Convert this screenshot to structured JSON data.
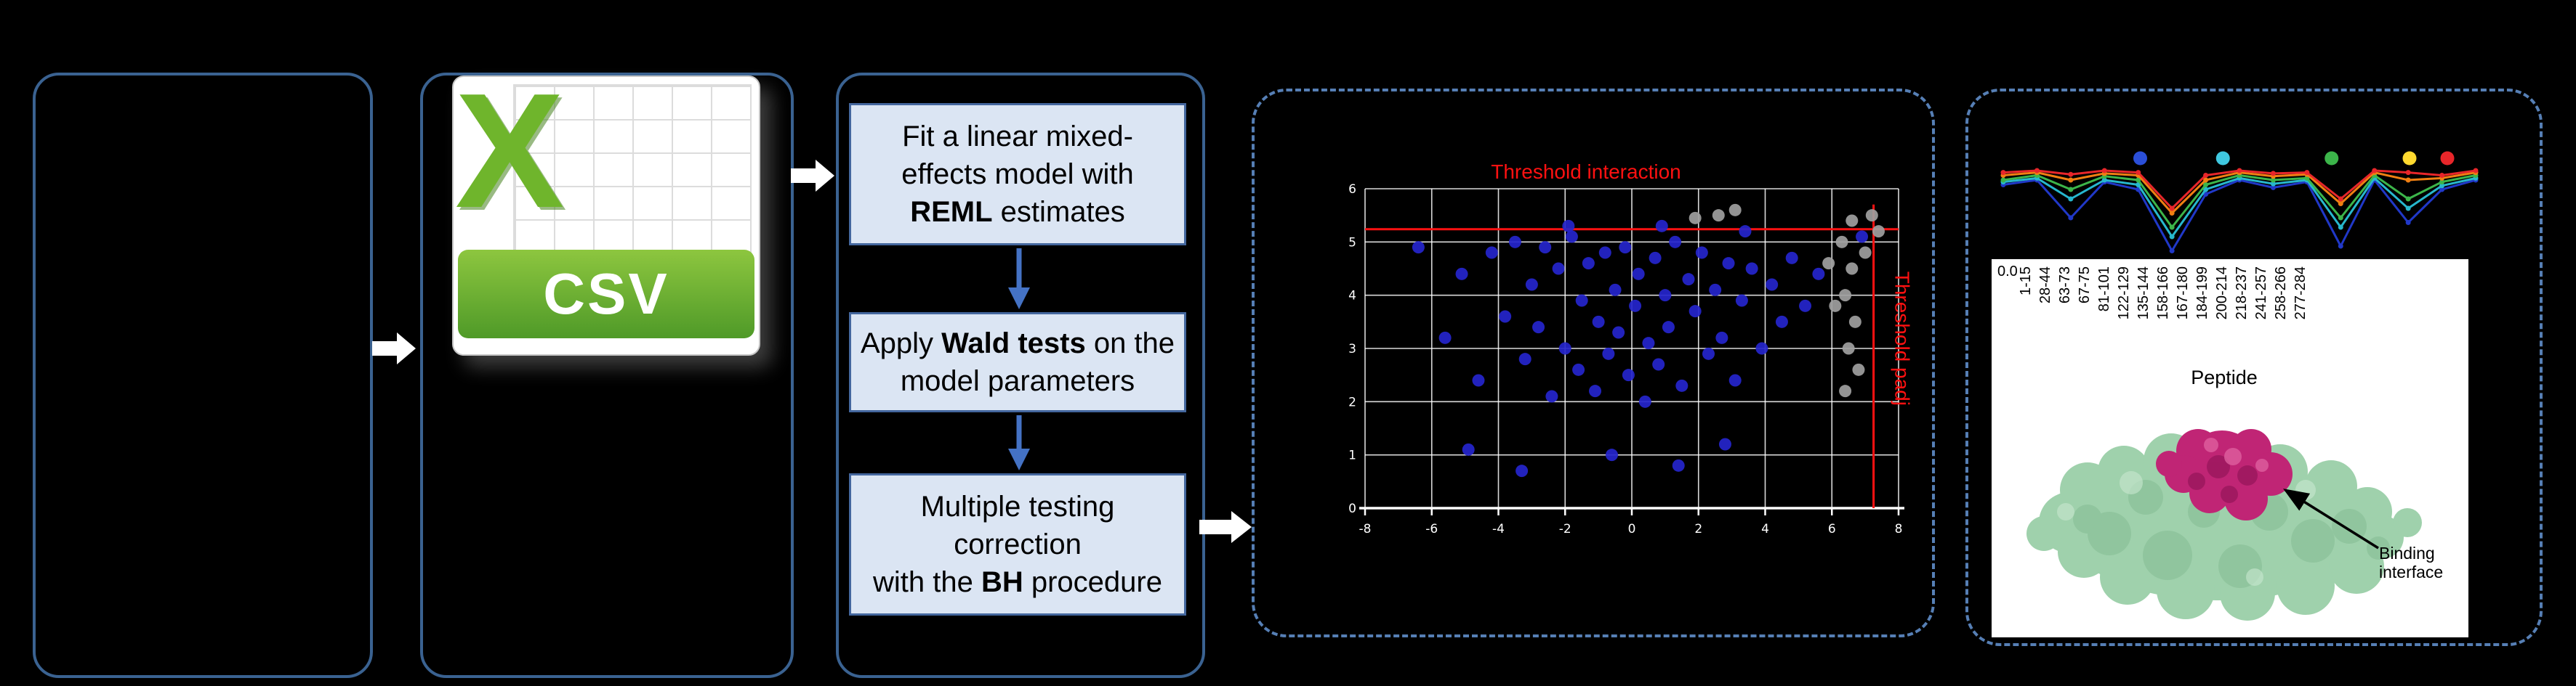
{
  "figure": {
    "background": "#000000",
    "solid_border_color": "#3a6291",
    "dashed_border_color": "#567fb5"
  },
  "csv_icon": {
    "x_letter": "X",
    "label": "CSV",
    "green": "#6fb52c",
    "banner_top": "#8dc63f",
    "banner_bottom": "#4f9a28"
  },
  "flow": {
    "fill": "#dbe5f3",
    "border": "#44679e",
    "arrow_color": "#4472c4",
    "steps": [
      {
        "segments": [
          {
            "t": "Fit a linear mixed-effects model with "
          },
          {
            "t": "REML",
            "b": true
          },
          {
            "t": " estimates"
          }
        ]
      },
      {
        "segments": [
          {
            "t": "Apply "
          },
          {
            "t": "Wald tests",
            "b": true
          },
          {
            "t": " on the model parameters"
          }
        ]
      },
      {
        "segments": [
          {
            "t": "Multiple testing correction\nwith the "
          },
          {
            "t": "BH",
            "b": true
          },
          {
            "t": " procedure"
          }
        ]
      }
    ]
  },
  "chart_data": [
    {
      "type": "scatter",
      "title": "",
      "xlabel": "",
      "ylabel": "",
      "grid": true,
      "grid_color": "#ffffff",
      "xlim": [
        -8,
        8
      ],
      "ylim": [
        0,
        6
      ],
      "x_ticks": [
        -8,
        -6,
        -4,
        -2,
        0,
        2,
        4,
        6,
        8
      ],
      "y_ticks": [
        0,
        1,
        2,
        3,
        4,
        5,
        6
      ],
      "threshold_h": {
        "y": 5.24,
        "label": "Threshold interaction",
        "color": "#ff1111"
      },
      "threshold_v": {
        "x": 7.25,
        "label": "Threshold padj",
        "color": "#ff1111"
      },
      "series": [
        {
          "name": "blue-points",
          "color": "#2525cd",
          "points": [
            [
              -6.4,
              4.9
            ],
            [
              -5.6,
              3.2
            ],
            [
              -5.1,
              4.4
            ],
            [
              -4.6,
              2.4
            ],
            [
              -4.2,
              4.8
            ],
            [
              -3.8,
              3.6
            ],
            [
              -3.5,
              5.0
            ],
            [
              -3.2,
              2.8
            ],
            [
              -3.0,
              4.2
            ],
            [
              -2.8,
              3.4
            ],
            [
              -2.6,
              4.9
            ],
            [
              -2.4,
              2.1
            ],
            [
              -2.2,
              4.5
            ],
            [
              -2.0,
              3.0
            ],
            [
              -1.8,
              5.1
            ],
            [
              -1.6,
              2.6
            ],
            [
              -1.5,
              3.9
            ],
            [
              -1.3,
              4.6
            ],
            [
              -1.1,
              2.2
            ],
            [
              -1.0,
              3.5
            ],
            [
              -0.8,
              4.8
            ],
            [
              -0.7,
              2.9
            ],
            [
              -0.5,
              4.1
            ],
            [
              -0.4,
              3.3
            ],
            [
              -0.2,
              4.9
            ],
            [
              -0.1,
              2.5
            ],
            [
              0.1,
              3.8
            ],
            [
              0.2,
              4.4
            ],
            [
              0.4,
              2.0
            ],
            [
              0.5,
              3.1
            ],
            [
              0.7,
              4.7
            ],
            [
              0.8,
              2.7
            ],
            [
              1.0,
              4.0
            ],
            [
              1.1,
              3.4
            ],
            [
              1.3,
              5.0
            ],
            [
              1.5,
              2.3
            ],
            [
              1.7,
              4.3
            ],
            [
              1.9,
              3.7
            ],
            [
              2.1,
              4.8
            ],
            [
              2.3,
              2.9
            ],
            [
              2.5,
              4.1
            ],
            [
              2.7,
              3.2
            ],
            [
              2.9,
              4.6
            ],
            [
              3.1,
              2.4
            ],
            [
              3.3,
              3.9
            ],
            [
              3.6,
              4.5
            ],
            [
              3.9,
              3.0
            ],
            [
              4.2,
              4.2
            ],
            [
              4.5,
              3.5
            ],
            [
              4.8,
              4.7
            ],
            [
              5.2,
              3.8
            ],
            [
              5.6,
              4.4
            ],
            [
              -4.9,
              1.1
            ],
            [
              -3.3,
              0.7
            ],
            [
              -0.6,
              1.0
            ],
            [
              1.4,
              0.8
            ],
            [
              2.8,
              1.2
            ],
            [
              6.9,
              5.1
            ],
            [
              0.9,
              5.3
            ],
            [
              -1.9,
              5.3
            ],
            [
              3.4,
              5.2
            ]
          ]
        },
        {
          "name": "gray-points",
          "color": "#a0a0a0",
          "points": [
            [
              6.3,
              5.0
            ],
            [
              6.6,
              4.5
            ],
            [
              6.4,
              4.0
            ],
            [
              6.7,
              3.5
            ],
            [
              6.5,
              3.0
            ],
            [
              6.8,
              2.6
            ],
            [
              6.4,
              2.2
            ],
            [
              6.6,
              5.4
            ],
            [
              7.2,
              5.5
            ],
            [
              7.0,
              4.8
            ],
            [
              6.1,
              3.8
            ],
            [
              5.9,
              4.6
            ],
            [
              2.6,
              5.5
            ],
            [
              3.1,
              5.6
            ],
            [
              1.9,
              5.45
            ],
            [
              7.4,
              5.2
            ]
          ]
        }
      ]
    },
    {
      "type": "line",
      "xlabel": "Peptide",
      "ylabel_tick": "0.0",
      "ylim": [
        0,
        1
      ],
      "categories": [
        "1-15",
        "28-44",
        "63-73",
        "67-75",
        "81-101",
        "122-129",
        "135-144",
        "158-166",
        "167-180",
        "184-199",
        "200-214",
        "218-237",
        "241-257",
        "258-266",
        "277-284"
      ],
      "series": [
        {
          "name": "blue",
          "color": "#2038c8",
          "values": [
            0.75,
            0.8,
            0.4,
            0.78,
            0.7,
            0.05,
            0.65,
            0.8,
            0.72,
            0.78,
            0.1,
            0.8,
            0.35,
            0.7,
            0.8
          ]
        },
        {
          "name": "cyan",
          "color": "#27b7cd",
          "values": [
            0.78,
            0.82,
            0.6,
            0.8,
            0.75,
            0.2,
            0.7,
            0.82,
            0.76,
            0.8,
            0.3,
            0.82,
            0.5,
            0.74,
            0.82
          ]
        },
        {
          "name": "green",
          "color": "#3cb54a",
          "values": [
            0.8,
            0.85,
            0.7,
            0.84,
            0.8,
            0.3,
            0.75,
            0.85,
            0.8,
            0.82,
            0.4,
            0.85,
            0.6,
            0.78,
            0.85
          ]
        },
        {
          "name": "orange",
          "color": "#f07f12",
          "values": [
            0.85,
            0.88,
            0.8,
            0.87,
            0.85,
            0.45,
            0.8,
            0.88,
            0.84,
            0.86,
            0.55,
            0.88,
            0.8,
            0.82,
            0.88
          ]
        },
        {
          "name": "red",
          "color": "#e8262a",
          "values": [
            0.88,
            0.9,
            0.86,
            0.9,
            0.88,
            0.5,
            0.85,
            0.9,
            0.87,
            0.88,
            0.6,
            0.9,
            0.88,
            0.85,
            0.9
          ]
        }
      ],
      "markers": [
        {
          "color": "#2b4fd8",
          "fx": 0.29
        },
        {
          "color": "#3fc8e0",
          "fx": 0.465
        },
        {
          "color": "#3cb54a",
          "fx": 0.695
        },
        {
          "color": "#ffd92f",
          "fx": 0.86
        },
        {
          "color": "#e8262a",
          "fx": 0.94
        }
      ]
    }
  ],
  "structure_panel": {
    "annotation": "Binding interface",
    "protein_green": "#9fd1ac",
    "interface_pink": "#c02575"
  }
}
